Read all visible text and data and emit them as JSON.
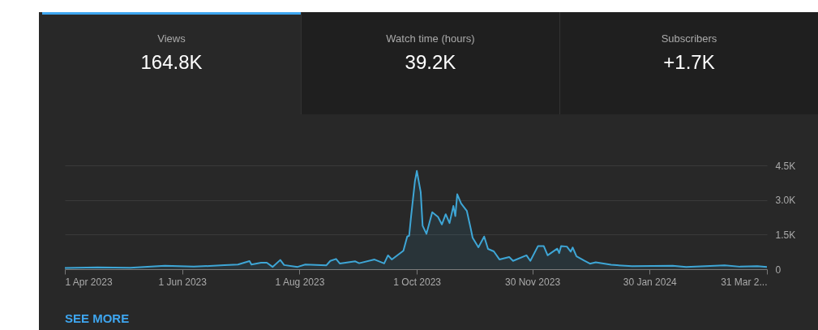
{
  "chart_data": [
    {
      "type": "other",
      "annotations": [
        "Views",
        "164.8K",
        "Watch time (hours)",
        "39.2K",
        "Subscribers",
        "+1.7K"
      ]
    },
    {
      "type": "area",
      "x": [
        "2023-04-01",
        "2023-04-18",
        "2023-05-05",
        "2023-05-23",
        "2023-06-07",
        "2023-06-23",
        "2023-06-30",
        "2023-07-06",
        "2023-07-07",
        "2023-07-12",
        "2023-07-15",
        "2023-07-18",
        "2023-07-22",
        "2023-07-24",
        "2023-07-31",
        "2023-08-04",
        "2023-08-15",
        "2023-08-17",
        "2023-08-20",
        "2023-08-22",
        "2023-08-30",
        "2023-09-01",
        "2023-09-09",
        "2023-09-14",
        "2023-09-16",
        "2023-09-18",
        "2023-09-24",
        "2023-09-26",
        "2023-09-27",
        "2023-09-28",
        "2023-09-30",
        "2023-10-01",
        "2023-10-03",
        "2023-10-04",
        "2023-10-06",
        "2023-10-09",
        "2023-10-12",
        "2023-10-14",
        "2023-10-16",
        "2023-10-18",
        "2023-10-20",
        "2023-10-21",
        "2023-10-22",
        "2023-10-24",
        "2023-10-27",
        "2023-10-29",
        "2023-10-30",
        "2023-11-02",
        "2023-11-05",
        "2023-11-07",
        "2023-11-10",
        "2023-11-13",
        "2023-11-18",
        "2023-11-20",
        "2023-11-27",
        "2023-11-29",
        "2023-12-03",
        "2023-12-06",
        "2023-12-08",
        "2023-12-13",
        "2023-12-14",
        "2023-12-15",
        "2023-12-18",
        "2023-12-20",
        "2023-12-21",
        "2023-12-23",
        "2023-12-27",
        "2023-12-30",
        "2024-01-02",
        "2024-01-10",
        "2024-01-21",
        "2024-02-11",
        "2024-02-18",
        "2024-03-09",
        "2024-03-17",
        "2024-03-26",
        "2024-03-31"
      ],
      "series": [
        {
          "color": "#3ea6d6",
          "values": [
            50,
            80,
            60,
            150,
            110,
            175,
            200,
            350,
            200,
            280,
            280,
            100,
            400,
            180,
            100,
            200,
            170,
            360,
            445,
            245,
            340,
            260,
            420,
            250,
            600,
            420,
            800,
            1415,
            1450,
            2290,
            3815,
            4260,
            3345,
            1885,
            1535,
            2470,
            2270,
            1940,
            2385,
            2000,
            2740,
            2300,
            3250,
            2850,
            2525,
            1765,
            1360,
            950,
            1415,
            880,
            775,
            420,
            530,
            360,
            600,
            360,
            1005,
            1000,
            600,
            890,
            700,
            1005,
            980,
            760,
            940,
            560,
            370,
            240,
            300,
            190,
            130,
            150,
            100,
            170,
            110,
            130,
            100
          ]
        }
      ],
      "xlim": [
        "2023-04-01",
        "2024-03-31"
      ],
      "xticks": [
        {
          "value": "2023-04-01",
          "label": "1 Apr 2023"
        },
        {
          "value": "2023-06-01",
          "label": "1 Jun 2023"
        },
        {
          "value": "2023-08-01",
          "label": "1 Aug 2023"
        },
        {
          "value": "2023-10-01",
          "label": "1 Oct 2023"
        },
        {
          "value": "2023-11-30",
          "label": "30 Nov 2023"
        },
        {
          "value": "2024-01-30",
          "label": "30 Jan 2024"
        },
        {
          "value": "2024-03-31",
          "label": "31 Mar 2..."
        }
      ],
      "ylim": [
        0,
        4500
      ],
      "yticks": [
        0,
        {
          "value": 1500,
          "label": "1.5K"
        },
        {
          "value": 3000,
          "label": "3.0K"
        },
        {
          "value": 4500,
          "label": "4.5K"
        }
      ],
      "grid": "y",
      "annotations": [
        "SEE MORE"
      ]
    }
  ]
}
